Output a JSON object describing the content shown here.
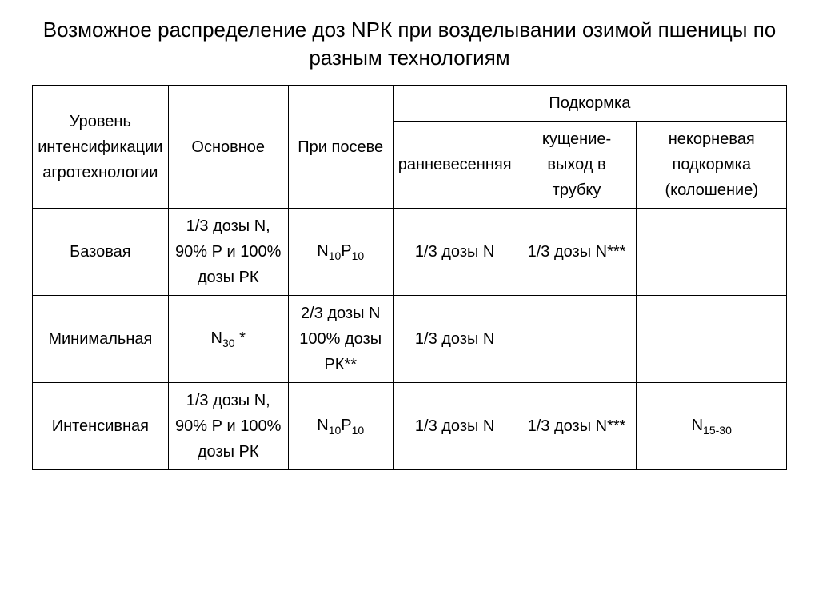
{
  "title": "Возможное распределение доз NPК при возделывании озимой пшеницы по разным технологиям",
  "headers": {
    "level": "Уровень интенсификации агротехнологии",
    "main": "Основное",
    "sowing": "При посеве",
    "feeding": "Подкормка",
    "early_spring": "ранневесенняя",
    "tillering": "кущение-выход в трубку",
    "foliar": "некорневая подкормка (колошение)"
  },
  "rows": {
    "basic": {
      "level": "Базовая",
      "main": "1/3 дозы N, 90% Р и 100% дозы РК",
      "sowing_html": "N<sub>10</sub>P<sub>10</sub>",
      "early_spring": "1/3 дозы N",
      "tillering": "1/3 дозы N***",
      "foliar": ""
    },
    "minimal": {
      "level": "Минимальная",
      "main_html": "N<sub>30</sub> *",
      "sowing": "2/3 дозы N 100% дозы РК**",
      "early_spring": "1/3 дозы N",
      "tillering": "",
      "foliar": ""
    },
    "intensive": {
      "level": "Интенсивная",
      "main": "1/3 дозы N, 90% Р и 100% дозы РК",
      "sowing_html": "N<sub>10</sub>P<sub>10</sub>",
      "early_spring": "1/3 дозы N",
      "tillering": "1/3 дозы N***",
      "foliar_html": "N<sub>15-30</sub>"
    }
  },
  "style": {
    "background_color": "#ffffff",
    "border_color": "#000000",
    "text_color": "#000000",
    "title_fontsize": 26,
    "cell_fontsize": 20
  }
}
